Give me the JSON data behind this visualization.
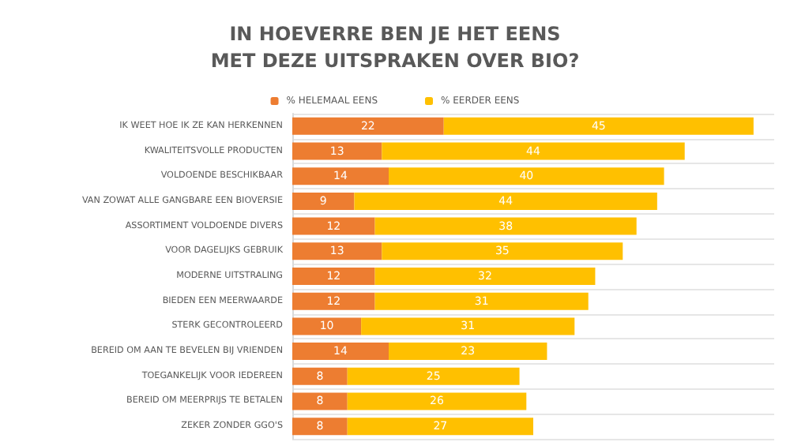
{
  "chart_data": {
    "type": "bar",
    "orientation": "horizontal",
    "stacked": true,
    "title": "IN HOEVERRE BEN JE HET EENS\nMET DEZE UITSPRAKEN OVER BIO?",
    "categories": [
      "IK WEET HOE IK ZE KAN HERKENNEN",
      "KWALITEITSVOLLE PRODUCTEN",
      "VOLDOENDE BESCHIKBAAR",
      "VAN ZOWAT ALLE GANGBARE EEN BIOVERSIE",
      "ASSORTIMENT VOLDOENDE DIVERS",
      "VOOR DAGELIJKS GEBRUIK",
      "MODERNE UITSTRALING",
      "BIEDEN EEN MEERWAARDE",
      "STERK GECONTROLEERD",
      "BEREID OM AAN TE BEVELEN BIJ VRIENDEN",
      "TOEGANKELIJK VOOR IEDEREEN",
      "BEREID OM MEERPRIJS TE BETALEN",
      "ZEKER ZONDER GGO'S"
    ],
    "series": [
      {
        "name": "% HELEMAAL EENS",
        "color": "#ed7d31",
        "values": [
          22,
          13,
          14,
          9,
          12,
          13,
          12,
          12,
          10,
          14,
          8,
          8,
          8
        ]
      },
      {
        "name": "% EERDER EENS",
        "color": "#ffc000",
        "values": [
          45,
          44,
          40,
          44,
          38,
          35,
          32,
          31,
          31,
          23,
          25,
          26,
          27
        ]
      }
    ],
    "data_labels": true,
    "legend": "top",
    "grid": "y",
    "tick_labels": "y"
  }
}
